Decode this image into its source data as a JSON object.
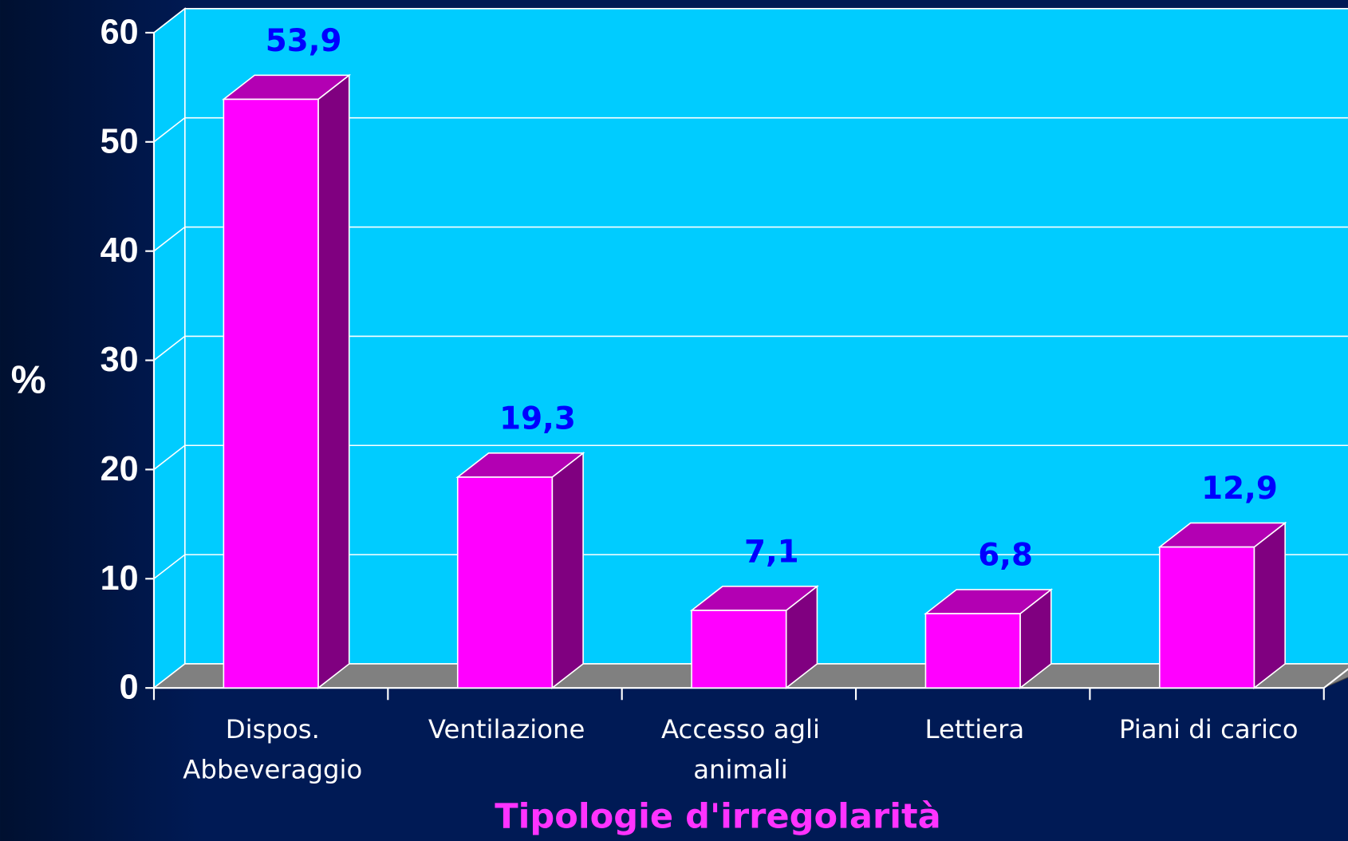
{
  "chart_data": {
    "type": "bar3d",
    "xlabel": "Tipologie d'irregolarità",
    "ylabel": "%",
    "categories": [
      [
        "Dispos.",
        "Abbeveraggio"
      ],
      [
        "Ventilazione"
      ],
      [
        "Accesso agli",
        "animali"
      ],
      [
        "Lettiera"
      ],
      [
        "Piani di carico"
      ]
    ],
    "values": [
      53.9,
      19.3,
      7.1,
      6.8,
      12.9
    ],
    "value_labels": [
      "53,9",
      "19,3",
      "7,1",
      "6,8",
      "12,9"
    ],
    "color": "#ff00ff",
    "ylim": [
      0,
      60
    ],
    "yticks": [
      0,
      10,
      20,
      30,
      40,
      50,
      60
    ],
    "grid": true
  }
}
